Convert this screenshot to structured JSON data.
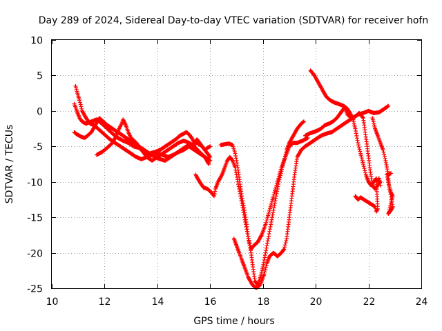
{
  "chart_data": {
    "type": "scatter",
    "title": "Day 289 of 2024, Sidereal Day-to-day VTEC variation (SDTVAR) for receiver hofn",
    "xlabel": "GPS time / hours",
    "ylabel": "SDTVAR / TECUs",
    "xlim": [
      10,
      24
    ],
    "ylim": [
      -25,
      10
    ],
    "xticks": [
      "10",
      "12",
      "14",
      "16",
      "18",
      "20",
      "22",
      "24"
    ],
    "yticks": [
      "10",
      "5",
      "0",
      "-5",
      "-10",
      "-15",
      "-20",
      "-25"
    ],
    "xtick_values": [
      10,
      12,
      14,
      16,
      18,
      20,
      22,
      24
    ],
    "ytick_values": [
      10,
      5,
      0,
      -5,
      -10,
      -15,
      -20,
      -25
    ],
    "grid": true,
    "marker": "+",
    "color": "#ff0000",
    "series": [
      {
        "name": "track-1",
        "points": [
          [
            10.85,
            1.0
          ],
          [
            10.95,
            0.0
          ],
          [
            11.05,
            -1.0
          ],
          [
            11.15,
            -1.5
          ],
          [
            11.3,
            -1.8
          ],
          [
            11.5,
            -1.5
          ],
          [
            11.7,
            -1.2
          ],
          [
            11.9,
            -1.8
          ],
          [
            12.1,
            -2.5
          ],
          [
            12.3,
            -3.2
          ],
          [
            12.5,
            -3.8
          ],
          [
            12.7,
            -4.2
          ],
          [
            12.9,
            -4.5
          ],
          [
            13.1,
            -5.0
          ],
          [
            13.3,
            -5.2
          ],
          [
            13.5,
            -5.8
          ],
          [
            13.7,
            -6.0
          ],
          [
            13.9,
            -5.8
          ],
          [
            14.1,
            -5.5
          ],
          [
            14.3,
            -5.0
          ],
          [
            14.5,
            -4.5
          ],
          [
            14.7,
            -4.0
          ],
          [
            14.85,
            -3.5
          ],
          [
            15.0,
            -3.2
          ],
          [
            15.1,
            -3.0
          ],
          [
            15.2,
            -3.3
          ],
          [
            15.3,
            -3.8
          ],
          [
            15.4,
            -4.5
          ],
          [
            15.5,
            -4.0
          ],
          [
            15.6,
            -4.5
          ],
          [
            15.7,
            -5.0
          ],
          [
            15.8,
            -5.5
          ],
          [
            15.9,
            -5.2
          ],
          [
            16.0,
            -5.0
          ]
        ]
      },
      {
        "name": "track-2",
        "points": [
          [
            10.9,
            3.5
          ],
          [
            10.97,
            2.5
          ],
          [
            11.05,
            1.5
          ],
          [
            11.15,
            0.0
          ],
          [
            11.3,
            -1.0
          ],
          [
            11.45,
            -1.8
          ],
          [
            11.6,
            -2.0
          ],
          [
            11.75,
            -2.5
          ],
          [
            11.9,
            -3.0
          ],
          [
            12.05,
            -3.5
          ],
          [
            12.2,
            -4.0
          ],
          [
            12.4,
            -4.5
          ],
          [
            12.6,
            -5.0
          ],
          [
            12.8,
            -5.5
          ],
          [
            13.0,
            -6.0
          ],
          [
            13.2,
            -6.5
          ],
          [
            13.4,
            -6.8
          ],
          [
            13.6,
            -6.5
          ],
          [
            13.8,
            -6.2
          ],
          [
            14.0,
            -6.0
          ],
          [
            14.2,
            -6.2
          ],
          [
            14.4,
            -6.5
          ],
          [
            14.6,
            -6.2
          ],
          [
            14.8,
            -5.8
          ],
          [
            15.0,
            -5.5
          ],
          [
            15.2,
            -5.0
          ],
          [
            15.4,
            -5.5
          ],
          [
            15.6,
            -6.0
          ],
          [
            15.8,
            -6.5
          ],
          [
            16.0,
            -7.0
          ]
        ]
      },
      {
        "name": "track-3",
        "points": [
          [
            10.85,
            -3.0
          ],
          [
            10.95,
            -3.3
          ],
          [
            11.05,
            -3.5
          ],
          [
            11.15,
            -3.7
          ],
          [
            11.25,
            -3.8
          ],
          [
            11.35,
            -3.5
          ],
          [
            11.5,
            -3.0
          ],
          [
            11.65,
            -2.0
          ],
          [
            11.8,
            -1.0
          ],
          [
            11.95,
            -1.5
          ],
          [
            12.1,
            -2.0
          ],
          [
            12.3,
            -2.5
          ],
          [
            12.5,
            -3.0
          ],
          [
            12.7,
            -3.5
          ],
          [
            12.9,
            -4.0
          ],
          [
            13.1,
            -4.5
          ],
          [
            13.3,
            -5.0
          ],
          [
            13.5,
            -5.5
          ],
          [
            13.7,
            -6.0
          ],
          [
            13.9,
            -6.5
          ],
          [
            14.1,
            -6.8
          ],
          [
            14.3,
            -7.0
          ],
          [
            14.5,
            -6.5
          ],
          [
            14.7,
            -6.0
          ],
          [
            14.9,
            -5.5
          ],
          [
            15.1,
            -5.0
          ],
          [
            15.3,
            -4.8
          ],
          [
            15.5,
            -4.5
          ],
          [
            15.7,
            -5.0
          ],
          [
            15.9,
            -6.0
          ],
          [
            16.0,
            -6.5
          ]
        ]
      },
      {
        "name": "track-4",
        "points": [
          [
            11.7,
            -6.2
          ],
          [
            11.9,
            -5.8
          ],
          [
            12.1,
            -5.2
          ],
          [
            12.3,
            -4.5
          ],
          [
            12.45,
            -3.5
          ],
          [
            12.55,
            -2.5
          ],
          [
            12.65,
            -1.8
          ],
          [
            12.7,
            -1.2
          ],
          [
            12.8,
            -2.0
          ],
          [
            12.9,
            -3.0
          ],
          [
            13.0,
            -3.8
          ],
          [
            13.2,
            -4.5
          ],
          [
            13.4,
            -5.5
          ],
          [
            13.6,
            -6.5
          ],
          [
            13.8,
            -7.0
          ],
          [
            14.0,
            -6.5
          ],
          [
            14.2,
            -6.0
          ],
          [
            14.4,
            -5.5
          ],
          [
            14.6,
            -5.0
          ],
          [
            14.8,
            -4.5
          ],
          [
            15.0,
            -4.2
          ],
          [
            15.2,
            -4.5
          ],
          [
            15.4,
            -5.0
          ],
          [
            15.6,
            -5.8
          ],
          [
            15.8,
            -6.5
          ],
          [
            15.95,
            -7.5
          ]
        ]
      },
      {
        "name": "track-5",
        "points": [
          [
            15.45,
            -9.0
          ],
          [
            15.6,
            -10.0
          ],
          [
            15.75,
            -10.8
          ],
          [
            15.9,
            -11.0
          ],
          [
            16.05,
            -11.5
          ],
          [
            16.15,
            -12.0
          ],
          [
            16.2,
            -11.0
          ],
          [
            16.3,
            -10.0
          ],
          [
            16.45,
            -9.0
          ],
          [
            16.55,
            -8.0
          ],
          [
            16.65,
            -7.0
          ],
          [
            16.75,
            -6.5
          ],
          [
            16.85,
            -7.0
          ],
          [
            16.95,
            -8.0
          ],
          [
            17.05,
            -10.0
          ],
          [
            17.15,
            -12.0
          ],
          [
            17.25,
            -14.0
          ],
          [
            17.35,
            -16.0
          ],
          [
            17.45,
            -18.0
          ],
          [
            17.55,
            -19.5
          ],
          [
            17.65,
            -19.0
          ],
          [
            17.8,
            -18.5
          ],
          [
            17.95,
            -17.5
          ],
          [
            18.1,
            -16.0
          ],
          [
            18.25,
            -14.0
          ],
          [
            18.4,
            -12.0
          ],
          [
            18.55,
            -10.0
          ],
          [
            18.7,
            -8.0
          ],
          [
            18.85,
            -6.5
          ],
          [
            19.0,
            -5.0
          ],
          [
            19.15,
            -4.5
          ],
          [
            19.3,
            -4.5
          ],
          [
            19.5,
            -4.2
          ],
          [
            19.7,
            -3.8
          ]
        ]
      },
      {
        "name": "track-6",
        "points": [
          [
            16.4,
            -4.8
          ],
          [
            16.55,
            -4.7
          ],
          [
            16.7,
            -4.6
          ],
          [
            16.85,
            -4.8
          ],
          [
            16.95,
            -6.0
          ],
          [
            17.05,
            -8.0
          ],
          [
            17.12,
            -10.0
          ],
          [
            17.2,
            -12.0
          ],
          [
            17.3,
            -14.0
          ],
          [
            17.38,
            -16.0
          ],
          [
            17.45,
            -18.0
          ],
          [
            17.55,
            -20.0
          ],
          [
            17.62,
            -22.0
          ],
          [
            17.7,
            -24.0
          ],
          [
            17.8,
            -24.5
          ],
          [
            17.9,
            -23.5
          ],
          [
            18.0,
            -22.0
          ],
          [
            18.1,
            -20.0
          ],
          [
            18.2,
            -18.0
          ],
          [
            18.3,
            -16.0
          ],
          [
            18.4,
            -14.0
          ],
          [
            18.5,
            -12.0
          ],
          [
            18.6,
            -10.0
          ],
          [
            18.7,
            -8.5
          ],
          [
            18.8,
            -7.0
          ],
          [
            18.9,
            -5.5
          ],
          [
            19.0,
            -4.5
          ],
          [
            19.15,
            -3.5
          ],
          [
            19.3,
            -2.5
          ],
          [
            19.45,
            -1.8
          ],
          [
            19.55,
            -1.5
          ]
        ]
      },
      {
        "name": "track-7",
        "points": [
          [
            16.9,
            -18.0
          ],
          [
            17.0,
            -19.0
          ],
          [
            17.1,
            -20.0
          ],
          [
            17.2,
            -21.0
          ],
          [
            17.3,
            -22.0
          ],
          [
            17.45,
            -23.5
          ],
          [
            17.6,
            -24.5
          ],
          [
            17.75,
            -25.0
          ],
          [
            17.9,
            -24.5
          ],
          [
            18.05,
            -23.0
          ],
          [
            18.15,
            -21.5
          ],
          [
            18.25,
            -20.5
          ],
          [
            18.4,
            -20.0
          ],
          [
            18.55,
            -20.5
          ],
          [
            18.7,
            -20.0
          ],
          [
            18.8,
            -19.5
          ],
          [
            18.9,
            -18.0
          ],
          [
            19.0,
            -15.0
          ],
          [
            19.1,
            -12.0
          ],
          [
            19.2,
            -9.0
          ],
          [
            19.3,
            -6.5
          ],
          [
            19.45,
            -5.5
          ],
          [
            19.6,
            -5.0
          ],
          [
            19.8,
            -4.5
          ],
          [
            20.0,
            -4.0
          ],
          [
            20.2,
            -3.5
          ],
          [
            20.4,
            -3.2
          ],
          [
            20.6,
            -3.0
          ],
          [
            20.8,
            -2.5
          ],
          [
            21.0,
            -2.0
          ],
          [
            21.2,
            -1.5
          ],
          [
            21.4,
            -1.0
          ],
          [
            21.6,
            -0.5
          ],
          [
            21.8,
            -0.3
          ],
          [
            22.0,
            0.0
          ],
          [
            22.2,
            -0.3
          ],
          [
            22.4,
            -0.2
          ],
          [
            22.6,
            0.3
          ],
          [
            22.75,
            0.7
          ]
        ]
      },
      {
        "name": "track-8",
        "points": [
          [
            19.8,
            5.7
          ],
          [
            19.95,
            5.0
          ],
          [
            20.1,
            4.0
          ],
          [
            20.25,
            3.0
          ],
          [
            20.4,
            2.0
          ],
          [
            20.55,
            1.5
          ],
          [
            20.7,
            1.2
          ],
          [
            20.85,
            1.0
          ],
          [
            21.0,
            0.8
          ],
          [
            21.1,
            0.6
          ],
          [
            21.2,
            0.3
          ],
          [
            21.3,
            -0.3
          ],
          [
            21.4,
            -1.0
          ],
          [
            21.5,
            -2.5
          ],
          [
            21.6,
            -4.5
          ],
          [
            21.7,
            -6.0
          ],
          [
            21.8,
            -7.5
          ],
          [
            21.9,
            -9.0
          ],
          [
            22.0,
            -10.0
          ],
          [
            22.1,
            -10.5
          ],
          [
            22.2,
            -10.0
          ],
          [
            22.3,
            -9.5
          ]
        ]
      },
      {
        "name": "track-9",
        "points": [
          [
            19.6,
            -3.5
          ],
          [
            19.75,
            -3.2
          ],
          [
            19.9,
            -3.0
          ],
          [
            20.05,
            -2.8
          ],
          [
            20.2,
            -2.5
          ],
          [
            20.35,
            -2.0
          ],
          [
            20.5,
            -1.8
          ],
          [
            20.65,
            -1.5
          ],
          [
            20.8,
            -1.0
          ],
          [
            20.9,
            -0.5
          ],
          [
            21.0,
            0.0
          ],
          [
            21.1,
            0.5
          ],
          [
            21.2,
            -0.5
          ],
          [
            21.35,
            -1.0
          ],
          [
            21.5,
            -0.8
          ],
          [
            21.65,
            -0.3
          ],
          [
            21.8,
            -1.0
          ],
          [
            21.95,
            -5.0
          ],
          [
            22.05,
            -8.0
          ],
          [
            22.15,
            -10.5
          ],
          [
            22.25,
            -11.0
          ],
          [
            22.35,
            -10.5
          ],
          [
            22.45,
            -10.0
          ]
        ]
      },
      {
        "name": "track-10",
        "points": [
          [
            21.5,
            -12.0
          ],
          [
            21.6,
            -12.5
          ],
          [
            21.7,
            -12.2
          ],
          [
            22.25,
            -13.5
          ],
          [
            22.3,
            -14.2
          ],
          [
            22.35,
            -13.8
          ],
          [
            22.3,
            -10.0
          ],
          [
            22.4,
            -9.5
          ],
          [
            22.45,
            -10.5
          ]
        ]
      },
      {
        "name": "track-11",
        "points": [
          [
            22.15,
            -1.0
          ],
          [
            22.25,
            -2.5
          ],
          [
            22.35,
            -3.5
          ],
          [
            22.45,
            -4.5
          ],
          [
            22.55,
            -5.5
          ],
          [
            22.65,
            -7.0
          ],
          [
            22.72,
            -8.5
          ],
          [
            22.78,
            -10.5
          ],
          [
            22.85,
            -11.5
          ],
          [
            22.92,
            -12.0
          ],
          [
            22.75,
            -14.5
          ],
          [
            22.85,
            -14.0
          ],
          [
            22.92,
            -13.5
          ],
          [
            22.7,
            -9.0
          ],
          [
            22.85,
            -8.8
          ]
        ]
      }
    ]
  }
}
